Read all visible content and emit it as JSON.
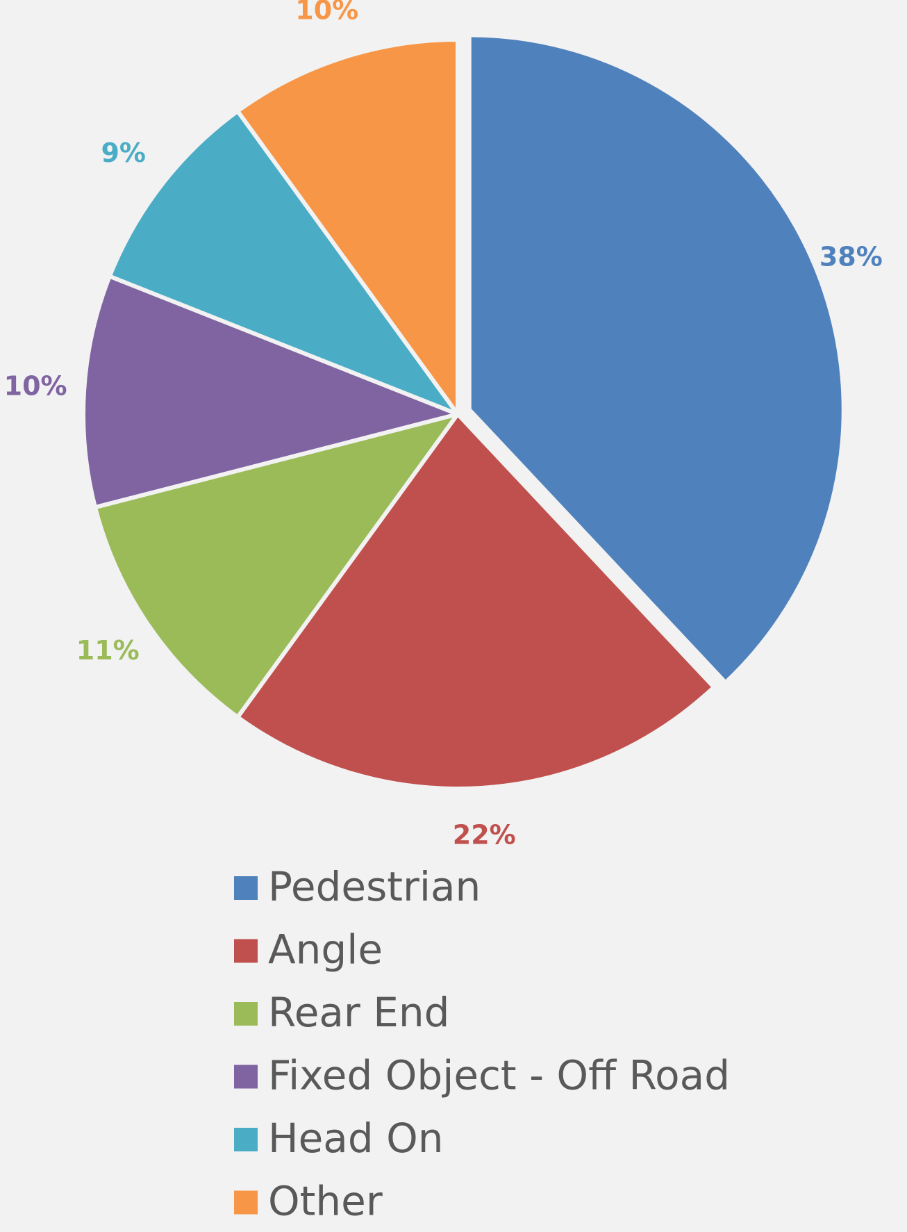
{
  "chart_data": {
    "type": "pie",
    "categories": [
      "Pedestrian",
      "Angle",
      "Rear End",
      "Fixed Object - Off Road",
      "Head On",
      "Other"
    ],
    "values": [
      38,
      22,
      11,
      10,
      9,
      10
    ],
    "value_labels": [
      "38%",
      "22%",
      "11%",
      "10%",
      "9%",
      "10%"
    ],
    "colors": [
      "#4f81bd",
      "#c0504d",
      "#9bbb59",
      "#8064a2",
      "#4bacc6",
      "#f79646"
    ],
    "legend": "bottom"
  }
}
